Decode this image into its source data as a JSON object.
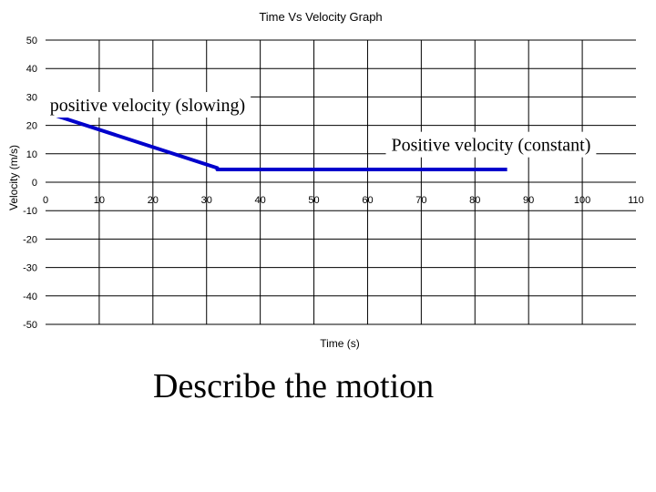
{
  "chart_data": {
    "type": "line",
    "title": "Time Vs Velocity Graph",
    "xlabel": "Time (s)",
    "ylabel": "Velocity (m/s)",
    "xlim": [
      0,
      110
    ],
    "ylim": [
      -50,
      50
    ],
    "x_ticks": [
      0,
      10,
      20,
      30,
      40,
      50,
      60,
      70,
      80,
      90,
      100,
      110
    ],
    "y_ticks": [
      50,
      40,
      30,
      20,
      10,
      0,
      -10,
      -20,
      -30,
      -40,
      -50
    ],
    "grid": "horizontal lines every 10 m/s; vertical lines every 10 s",
    "legend": "none",
    "series": [
      {
        "color": "#0000cc",
        "x": [
          1,
          32,
          32,
          86
        ],
        "y": [
          24,
          5,
          4.5,
          4.5
        ]
      }
    ],
    "annotations": [
      {
        "text": "positive velocity (slowing)",
        "x": 19,
        "y": 25
      },
      {
        "text": "Positive velocity (constant)",
        "x": 83,
        "y": 11
      }
    ]
  },
  "caption": "Describe the motion"
}
